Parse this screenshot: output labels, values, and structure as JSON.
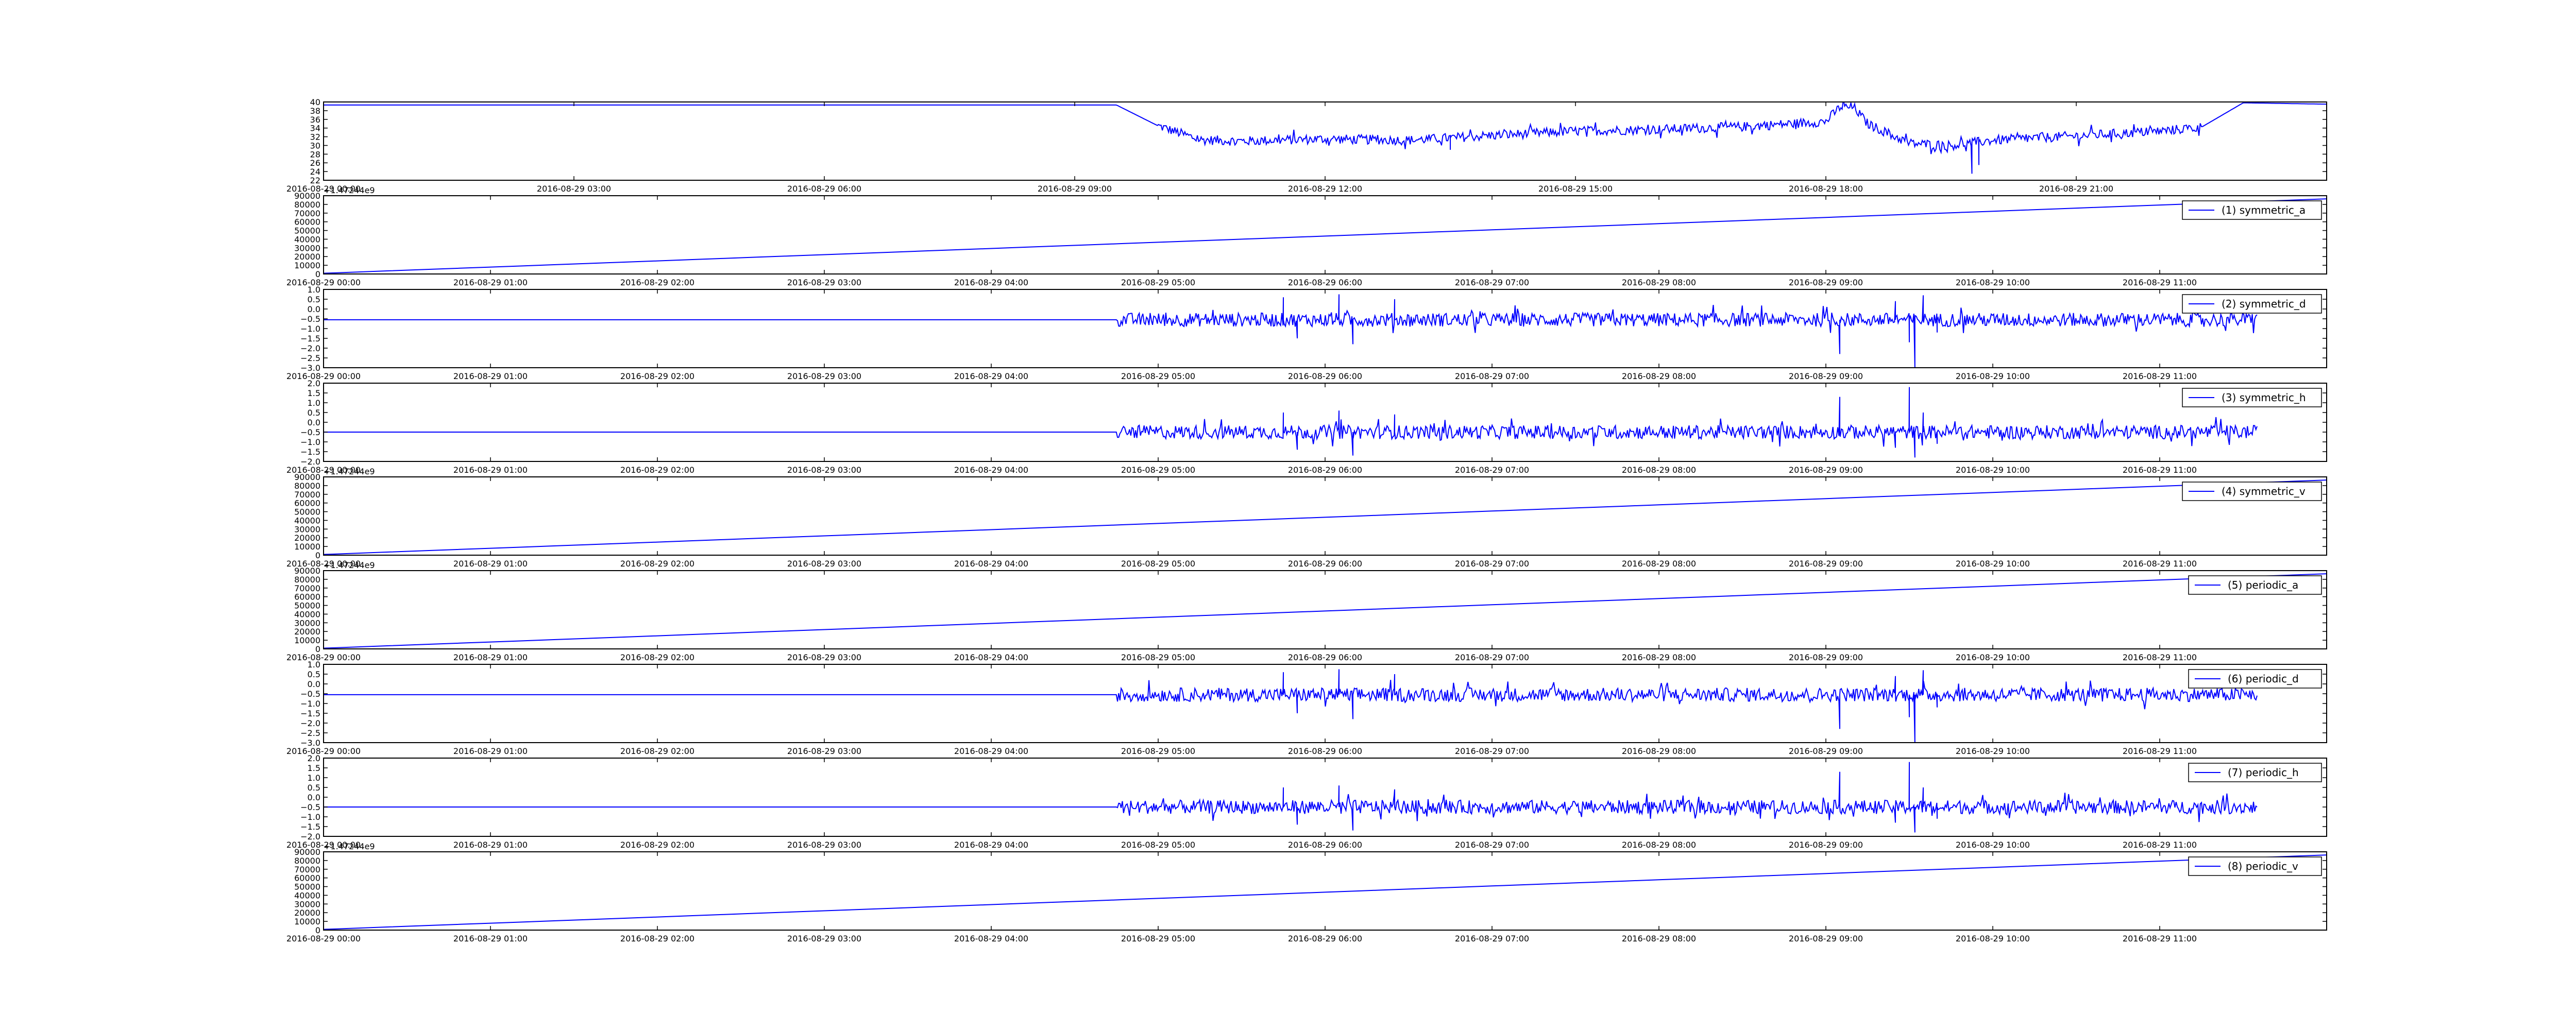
{
  "figure": {
    "line_color": "#0000ff",
    "axis_color": "#000000",
    "background": "#ffffff"
  },
  "chart_data": [
    {
      "type": "line",
      "title": "",
      "xlabel": "",
      "ylabel": "",
      "x_ticks": [
        "2016-08-29 00:00",
        "2016-08-29 03:00",
        "2016-08-29 06:00",
        "2016-08-29 09:00",
        "2016-08-29 12:00",
        "2016-08-29 15:00",
        "2016-08-29 18:00",
        "2016-08-29 21:00"
      ],
      "xlim": [
        "2016-08-29 00:00",
        "2016-08-30 00:00"
      ],
      "y_ticks": [
        "22",
        "24",
        "26",
        "28",
        "30",
        "32",
        "34",
        "36",
        "38",
        "40"
      ],
      "ylim": [
        22,
        40
      ],
      "offset_label": "",
      "legend": null,
      "legend_position": "none",
      "grid": false,
      "series": [
        {
          "color": "#0000ff",
          "x": [
            "2016-08-29 00:00",
            "2016-08-29 09:30",
            "2016-08-29 10:00",
            "2016-08-29 10:30",
            "2016-08-29 11:00",
            "2016-08-29 12:00",
            "2016-08-29 13:00",
            "2016-08-29 14:00",
            "2016-08-29 15:00",
            "2016-08-29 16:00",
            "2016-08-29 17:00",
            "2016-08-29 18:00",
            "2016-08-29 18:10",
            "2016-08-29 18:20",
            "2016-08-29 18:30",
            "2016-08-29 19:00",
            "2016-08-29 19:30",
            "2016-08-29 20:00",
            "2016-08-29 21:00",
            "2016-08-29 22:00",
            "2016-08-29 22:30",
            "2016-08-29 23:00",
            "2016-08-30 00:00"
          ],
          "y": [
            39.3,
            39.3,
            34.5,
            31.3,
            31.0,
            31.5,
            31.2,
            32.3,
            33.3,
            33.7,
            34.3,
            35.5,
            38.8,
            38.8,
            35.0,
            30.5,
            30.0,
            31.2,
            32.2,
            33.3,
            34.2,
            39.8,
            39.5
          ],
          "noise_amplitude": 1.1,
          "noise_start": "2016-08-29 10:00",
          "noise_end": "2016-08-29 22:30",
          "spikes": [
            {
              "x": "2016-08-29 19:45",
              "y": 23.5
            },
            {
              "x": "2016-08-29 19:50",
              "y": 25.5
            },
            {
              "x": "2016-08-29 13:30",
              "y": 29.0
            }
          ]
        }
      ]
    },
    {
      "type": "line",
      "title": "",
      "xlabel": "",
      "ylabel": "",
      "x_ticks": [
        "2016-08-29 00:00",
        "2016-08-29 01:00",
        "2016-08-29 02:00",
        "2016-08-29 03:00",
        "2016-08-29 04:00",
        "2016-08-29 05:00",
        "2016-08-29 06:00",
        "2016-08-29 07:00",
        "2016-08-29 08:00",
        "2016-08-29 09:00",
        "2016-08-29 10:00",
        "2016-08-29 11:00"
      ],
      "xlim": [
        "2016-08-29 00:00",
        "2016-08-29 12:00"
      ],
      "y_ticks": [
        "0",
        "10000",
        "20000",
        "30000",
        "40000",
        "50000",
        "60000",
        "70000",
        "80000",
        "90000"
      ],
      "ylim": [
        0,
        90000
      ],
      "offset_label": "+1.47244e9",
      "legend": "(1) symmetric_a",
      "legend_position": "top-right",
      "grid": false,
      "series": [
        {
          "name": "(1) symmetric_a",
          "color": "#0000ff",
          "x": [
            "2016-08-29 00:00",
            "2016-08-29 12:00"
          ],
          "y": [
            800,
            86400
          ]
        }
      ]
    },
    {
      "type": "line",
      "title": "",
      "xlabel": "",
      "ylabel": "",
      "x_ticks": [
        "2016-08-29 00:00",
        "2016-08-29 01:00",
        "2016-08-29 02:00",
        "2016-08-29 03:00",
        "2016-08-29 04:00",
        "2016-08-29 05:00",
        "2016-08-29 06:00",
        "2016-08-29 07:00",
        "2016-08-29 08:00",
        "2016-08-29 09:00",
        "2016-08-29 10:00",
        "2016-08-29 11:00"
      ],
      "xlim": [
        "2016-08-29 00:00",
        "2016-08-29 12:00"
      ],
      "y_ticks": [
        "−3.0",
        "−2.5",
        "−2.0",
        "−1.5",
        "−1.0",
        "−0.5",
        "0.0",
        "0.5",
        "1.0"
      ],
      "ylim": [
        -3.0,
        1.0
      ],
      "offset_label": "",
      "legend": "(2) symmetric_d",
      "legend_position": "top-right",
      "grid": false,
      "series": [
        {
          "name": "(2) symmetric_d",
          "color": "#0000ff",
          "baseline": -0.55,
          "x": [
            "2016-08-29 00:00",
            "2016-08-29 04:45",
            "2016-08-29 11:35"
          ],
          "y": [
            -0.55,
            -0.55,
            -0.55
          ],
          "noise_start": "2016-08-29 04:45",
          "noise_end": "2016-08-29 11:35",
          "noise_amplitude": 0.35,
          "spikes": [
            {
              "x": "2016-08-29 05:45",
              "y": 0.6
            },
            {
              "x": "2016-08-29 05:50",
              "y": -1.5
            },
            {
              "x": "2016-08-29 06:05",
              "y": 0.75
            },
            {
              "x": "2016-08-29 06:10",
              "y": -1.8
            },
            {
              "x": "2016-08-29 06:25",
              "y": 0.5
            },
            {
              "x": "2016-08-29 09:05",
              "y": -2.3
            },
            {
              "x": "2016-08-29 09:25",
              "y": 0.4
            },
            {
              "x": "2016-08-29 09:30",
              "y": -1.7
            },
            {
              "x": "2016-08-29 09:32",
              "y": -3.0
            },
            {
              "x": "2016-08-29 09:35",
              "y": 0.7
            },
            {
              "x": "2016-08-29 09:40",
              "y": -1.2
            }
          ]
        }
      ]
    },
    {
      "type": "line",
      "title": "",
      "xlabel": "",
      "ylabel": "",
      "x_ticks": [
        "2016-08-29 00:00",
        "2016-08-29 01:00",
        "2016-08-29 02:00",
        "2016-08-29 03:00",
        "2016-08-29 04:00",
        "2016-08-29 05:00",
        "2016-08-29 06:00",
        "2016-08-29 07:00",
        "2016-08-29 08:00",
        "2016-08-29 09:00",
        "2016-08-29 10:00",
        "2016-08-29 11:00"
      ],
      "xlim": [
        "2016-08-29 00:00",
        "2016-08-29 12:00"
      ],
      "y_ticks": [
        "−2.0",
        "−1.5",
        "−1.0",
        "−0.5",
        "0.0",
        "0.5",
        "1.0",
        "1.5",
        "2.0"
      ],
      "ylim": [
        -2.0,
        2.0
      ],
      "offset_label": "",
      "legend": "(3) symmetric_h",
      "legend_position": "top-right",
      "grid": false,
      "series": [
        {
          "name": "(3) symmetric_h",
          "color": "#0000ff",
          "baseline": -0.5,
          "x": [
            "2016-08-29 00:00",
            "2016-08-29 04:45",
            "2016-08-29 11:35"
          ],
          "y": [
            -0.5,
            -0.5,
            -0.5
          ],
          "noise_start": "2016-08-29 04:45",
          "noise_end": "2016-08-29 11:35",
          "noise_amplitude": 0.35,
          "spikes": [
            {
              "x": "2016-08-29 05:45",
              "y": 0.5
            },
            {
              "x": "2016-08-29 05:50",
              "y": -1.4
            },
            {
              "x": "2016-08-29 06:05",
              "y": 0.6
            },
            {
              "x": "2016-08-29 06:10",
              "y": -1.7
            },
            {
              "x": "2016-08-29 06:25",
              "y": 0.4
            },
            {
              "x": "2016-08-29 09:05",
              "y": 1.3
            },
            {
              "x": "2016-08-29 09:25",
              "y": -1.3
            },
            {
              "x": "2016-08-29 09:30",
              "y": 1.8
            },
            {
              "x": "2016-08-29 09:32",
              "y": -1.8
            },
            {
              "x": "2016-08-29 09:35",
              "y": 0.5
            },
            {
              "x": "2016-08-29 09:40",
              "y": -1.1
            }
          ]
        }
      ]
    },
    {
      "type": "line",
      "title": "",
      "xlabel": "",
      "ylabel": "",
      "x_ticks": [
        "2016-08-29 00:00",
        "2016-08-29 01:00",
        "2016-08-29 02:00",
        "2016-08-29 03:00",
        "2016-08-29 04:00",
        "2016-08-29 05:00",
        "2016-08-29 06:00",
        "2016-08-29 07:00",
        "2016-08-29 08:00",
        "2016-08-29 09:00",
        "2016-08-29 10:00",
        "2016-08-29 11:00"
      ],
      "xlim": [
        "2016-08-29 00:00",
        "2016-08-29 12:00"
      ],
      "y_ticks": [
        "0",
        "10000",
        "20000",
        "30000",
        "40000",
        "50000",
        "60000",
        "70000",
        "80000",
        "90000"
      ],
      "ylim": [
        0,
        90000
      ],
      "offset_label": "+1.47244e9",
      "legend": "(4) symmetric_v",
      "legend_position": "top-right",
      "grid": false,
      "series": [
        {
          "name": "(4) symmetric_v",
          "color": "#0000ff",
          "x": [
            "2016-08-29 00:00",
            "2016-08-29 12:00"
          ],
          "y": [
            800,
            86400
          ]
        }
      ]
    },
    {
      "type": "line",
      "title": "",
      "xlabel": "",
      "ylabel": "",
      "x_ticks": [
        "2016-08-29 00:00",
        "2016-08-29 01:00",
        "2016-08-29 02:00",
        "2016-08-29 03:00",
        "2016-08-29 04:00",
        "2016-08-29 05:00",
        "2016-08-29 06:00",
        "2016-08-29 07:00",
        "2016-08-29 08:00",
        "2016-08-29 09:00",
        "2016-08-29 10:00",
        "2016-08-29 11:00"
      ],
      "xlim": [
        "2016-08-29 00:00",
        "2016-08-29 12:00"
      ],
      "y_ticks": [
        "0",
        "10000",
        "20000",
        "30000",
        "40000",
        "50000",
        "60000",
        "70000",
        "80000",
        "90000"
      ],
      "ylim": [
        0,
        90000
      ],
      "offset_label": "+1.47244e9",
      "legend": "(5) periodic_a",
      "legend_position": "top-right",
      "grid": false,
      "series": [
        {
          "name": "(5) periodic_a",
          "color": "#0000ff",
          "x": [
            "2016-08-29 00:00",
            "2016-08-29 12:00"
          ],
          "y": [
            800,
            86400
          ]
        }
      ]
    },
    {
      "type": "line",
      "title": "",
      "xlabel": "",
      "ylabel": "",
      "x_ticks": [
        "2016-08-29 00:00",
        "2016-08-29 01:00",
        "2016-08-29 02:00",
        "2016-08-29 03:00",
        "2016-08-29 04:00",
        "2016-08-29 05:00",
        "2016-08-29 06:00",
        "2016-08-29 07:00",
        "2016-08-29 08:00",
        "2016-08-29 09:00",
        "2016-08-29 10:00",
        "2016-08-29 11:00"
      ],
      "xlim": [
        "2016-08-29 00:00",
        "2016-08-29 12:00"
      ],
      "y_ticks": [
        "−3.0",
        "−2.5",
        "−2.0",
        "−1.5",
        "−1.0",
        "−0.5",
        "0.0",
        "0.5",
        "1.0"
      ],
      "ylim": [
        -3.0,
        1.0
      ],
      "offset_label": "",
      "legend": "(6) periodic_d",
      "legend_position": "top-right",
      "grid": false,
      "series": [
        {
          "name": "(6) periodic_d",
          "color": "#0000ff",
          "baseline": -0.55,
          "x": [
            "2016-08-29 00:00",
            "2016-08-29 04:45",
            "2016-08-29 11:35"
          ],
          "y": [
            -0.55,
            -0.55,
            -0.55
          ],
          "noise_start": "2016-08-29 04:45",
          "noise_end": "2016-08-29 11:35",
          "noise_amplitude": 0.35,
          "spikes": [
            {
              "x": "2016-08-29 05:45",
              "y": 0.6
            },
            {
              "x": "2016-08-29 05:50",
              "y": -1.5
            },
            {
              "x": "2016-08-29 06:05",
              "y": 0.75
            },
            {
              "x": "2016-08-29 06:10",
              "y": -1.8
            },
            {
              "x": "2016-08-29 06:25",
              "y": 0.5
            },
            {
              "x": "2016-08-29 09:05",
              "y": -2.3
            },
            {
              "x": "2016-08-29 09:25",
              "y": 0.4
            },
            {
              "x": "2016-08-29 09:30",
              "y": -1.7
            },
            {
              "x": "2016-08-29 09:32",
              "y": -3.0
            },
            {
              "x": "2016-08-29 09:35",
              "y": 0.7
            },
            {
              "x": "2016-08-29 09:40",
              "y": -1.2
            }
          ]
        }
      ]
    },
    {
      "type": "line",
      "title": "",
      "xlabel": "",
      "ylabel": "",
      "x_ticks": [
        "2016-08-29 00:00",
        "2016-08-29 01:00",
        "2016-08-29 02:00",
        "2016-08-29 03:00",
        "2016-08-29 04:00",
        "2016-08-29 05:00",
        "2016-08-29 06:00",
        "2016-08-29 07:00",
        "2016-08-29 08:00",
        "2016-08-29 09:00",
        "2016-08-29 10:00",
        "2016-08-29 11:00"
      ],
      "xlim": [
        "2016-08-29 00:00",
        "2016-08-29 12:00"
      ],
      "y_ticks": [
        "−2.0",
        "−1.5",
        "−1.0",
        "−0.5",
        "0.0",
        "0.5",
        "1.0",
        "1.5",
        "2.0"
      ],
      "ylim": [
        -2.0,
        2.0
      ],
      "offset_label": "",
      "legend": "(7) periodic_h",
      "legend_position": "top-right",
      "grid": false,
      "series": [
        {
          "name": "(7) periodic_h",
          "color": "#0000ff",
          "baseline": -0.5,
          "x": [
            "2016-08-29 00:00",
            "2016-08-29 04:45",
            "2016-08-29 11:35"
          ],
          "y": [
            -0.5,
            -0.5,
            -0.5
          ],
          "noise_start": "2016-08-29 04:45",
          "noise_end": "2016-08-29 11:35",
          "noise_amplitude": 0.35,
          "spikes": [
            {
              "x": "2016-08-29 05:45",
              "y": 0.5
            },
            {
              "x": "2016-08-29 05:50",
              "y": -1.4
            },
            {
              "x": "2016-08-29 06:05",
              "y": 0.6
            },
            {
              "x": "2016-08-29 06:10",
              "y": -1.7
            },
            {
              "x": "2016-08-29 06:25",
              "y": 0.4
            },
            {
              "x": "2016-08-29 09:05",
              "y": 1.3
            },
            {
              "x": "2016-08-29 09:25",
              "y": -1.3
            },
            {
              "x": "2016-08-29 09:30",
              "y": 1.8
            },
            {
              "x": "2016-08-29 09:32",
              "y": -1.8
            },
            {
              "x": "2016-08-29 09:35",
              "y": 0.5
            },
            {
              "x": "2016-08-29 09:40",
              "y": -1.1
            }
          ]
        }
      ]
    },
    {
      "type": "line",
      "title": "",
      "xlabel": "",
      "ylabel": "",
      "x_ticks": [
        "2016-08-29 00:00",
        "2016-08-29 01:00",
        "2016-08-29 02:00",
        "2016-08-29 03:00",
        "2016-08-29 04:00",
        "2016-08-29 05:00",
        "2016-08-29 06:00",
        "2016-08-29 07:00",
        "2016-08-29 08:00",
        "2016-08-29 09:00",
        "2016-08-29 10:00",
        "2016-08-29 11:00"
      ],
      "xlim": [
        "2016-08-29 00:00",
        "2016-08-29 12:00"
      ],
      "y_ticks": [
        "0",
        "10000",
        "20000",
        "30000",
        "40000",
        "50000",
        "60000",
        "70000",
        "80000",
        "90000"
      ],
      "ylim": [
        0,
        90000
      ],
      "offset_label": "+1.47244e9",
      "legend": "(8) periodic_v",
      "legend_position": "top-right",
      "grid": false,
      "series": [
        {
          "name": "(8) periodic_v",
          "color": "#0000ff",
          "x": [
            "2016-08-29 00:00",
            "2016-08-29 12:00"
          ],
          "y": [
            800,
            86400
          ]
        }
      ]
    }
  ]
}
